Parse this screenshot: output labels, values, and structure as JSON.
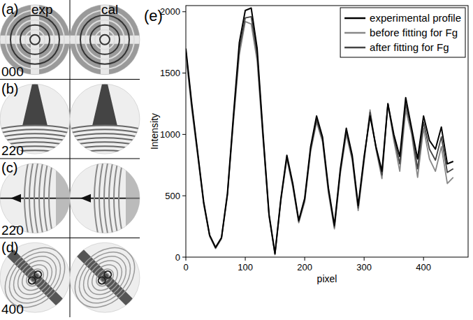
{
  "figure_panels": {
    "letters": [
      "(a)",
      "(b)",
      "(c)",
      "(d)"
    ],
    "reflections": [
      "000",
      "220",
      "22̄0",
      "400"
    ],
    "columns": [
      "exp",
      "cal"
    ],
    "chart_letter": "(e)"
  },
  "chart_data": {
    "type": "line",
    "x_label": "pixel",
    "y_label": "Intensity",
    "x": [
      0,
      10,
      20,
      30,
      40,
      50,
      60,
      70,
      80,
      90,
      100,
      110,
      120,
      130,
      140,
      150,
      160,
      170,
      180,
      190,
      200,
      210,
      220,
      230,
      240,
      250,
      260,
      270,
      280,
      290,
      300,
      310,
      320,
      330,
      340,
      350,
      360,
      370,
      380,
      390,
      400,
      410,
      420,
      430,
      440,
      450
    ],
    "series": [
      {
        "name": "experimental profile",
        "color": "#000000",
        "values": [
          1700,
          1250,
          850,
          450,
          180,
          80,
          160,
          520,
          1150,
          1750,
          2010,
          2030,
          1700,
          1000,
          350,
          30,
          480,
          830,
          600,
          300,
          480,
          900,
          1150,
          980,
          560,
          260,
          720,
          1050,
          830,
          420,
          820,
          1150,
          900,
          700,
          1250,
          1000,
          820,
          1300,
          1050,
          800,
          1150,
          950,
          880,
          1060,
          760,
          780
        ]
      },
      {
        "name": "before fitting for Fg",
        "color": "#888888",
        "values": [
          1650,
          1200,
          820,
          430,
          170,
          70,
          150,
          500,
          1100,
          1650,
          1920,
          1900,
          1600,
          950,
          330,
          20,
          460,
          800,
          570,
          280,
          450,
          860,
          1100,
          940,
          520,
          230,
          680,
          1000,
          790,
          380,
          780,
          1200,
          880,
          640,
          1250,
          950,
          700,
          1200,
          1000,
          650,
          1050,
          800,
          700,
          900,
          600,
          650
        ]
      },
      {
        "name": "after fitting for Fg",
        "color": "#444444",
        "values": [
          1680,
          1230,
          840,
          440,
          175,
          75,
          155,
          510,
          1120,
          1700,
          1950,
          1960,
          1650,
          980,
          340,
          25,
          470,
          815,
          585,
          290,
          465,
          880,
          1120,
          960,
          540,
          245,
          700,
          1030,
          810,
          400,
          800,
          1180,
          890,
          670,
          1250,
          980,
          760,
          1250,
          1030,
          720,
          1100,
          880,
          790,
          980,
          690,
          720
        ]
      }
    ],
    "xlim": [
      0,
      475
    ],
    "ylim": [
      0,
      2050
    ],
    "xticks": [
      0,
      100,
      200,
      300,
      400
    ],
    "yticks": [
      0,
      500,
      1000,
      1500,
      2000
    ],
    "legend": "top-right",
    "grid": false
  }
}
